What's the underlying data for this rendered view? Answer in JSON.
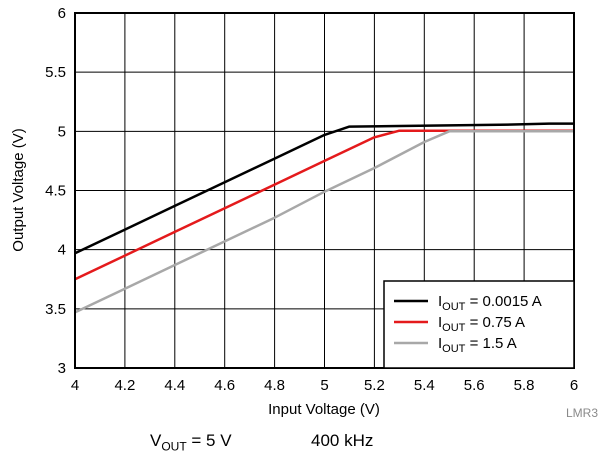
{
  "chart_data": {
    "type": "line",
    "xlabel": "Input Voltage (V)",
    "ylabel": "Output Voltage (V)",
    "xlim": [
      4,
      6
    ],
    "ylim": [
      3,
      6
    ],
    "x_ticks": [
      "4",
      "4.2",
      "4.4",
      "4.6",
      "4.8",
      "5",
      "5.2",
      "5.4",
      "5.6",
      "5.8",
      "6"
    ],
    "y_ticks": [
      "3",
      "3.5",
      "4",
      "4.5",
      "5",
      "5.5",
      "6"
    ],
    "grid": true,
    "legend_position": "bottom-right",
    "series": [
      {
        "name_prefix": "I",
        "name_sub": "OUT",
        "name_suffix": " = 0.0015 A",
        "color": "#000000",
        "x": [
          4.0,
          4.2,
          4.4,
          4.6,
          4.8,
          5.0,
          5.1,
          5.3,
          5.5,
          5.7,
          5.9,
          6.0
        ],
        "y": [
          3.97,
          4.17,
          4.37,
          4.57,
          4.77,
          4.97,
          5.04,
          5.045,
          5.05,
          5.055,
          5.065,
          5.065
        ]
      },
      {
        "name_prefix": "I",
        "name_sub": "OUT",
        "name_suffix": " = 0.75 A",
        "color": "#e41a1c",
        "x": [
          4.0,
          4.2,
          4.4,
          4.6,
          4.8,
          5.0,
          5.2,
          5.3,
          5.5,
          6.0
        ],
        "y": [
          3.75,
          3.95,
          4.15,
          4.35,
          4.55,
          4.75,
          4.95,
          5.005,
          5.005,
          5.005
        ]
      },
      {
        "name_prefix": "I",
        "name_sub": "OUT",
        "name_suffix": " = 1.5 A",
        "color": "#a8a8a8",
        "x": [
          4.0,
          4.2,
          4.4,
          4.6,
          4.8,
          5.0,
          5.2,
          5.4,
          5.5,
          5.7,
          6.0
        ],
        "y": [
          3.47,
          3.67,
          3.87,
          4.07,
          4.27,
          4.49,
          4.69,
          4.91,
          5.0,
          5.0,
          5.0
        ]
      }
    ],
    "annotation": "LMR3"
  },
  "footer": {
    "vout_prefix": "V",
    "vout_sub": "OUT",
    "vout_suffix": " = 5 V",
    "freq": "400 kHz"
  }
}
